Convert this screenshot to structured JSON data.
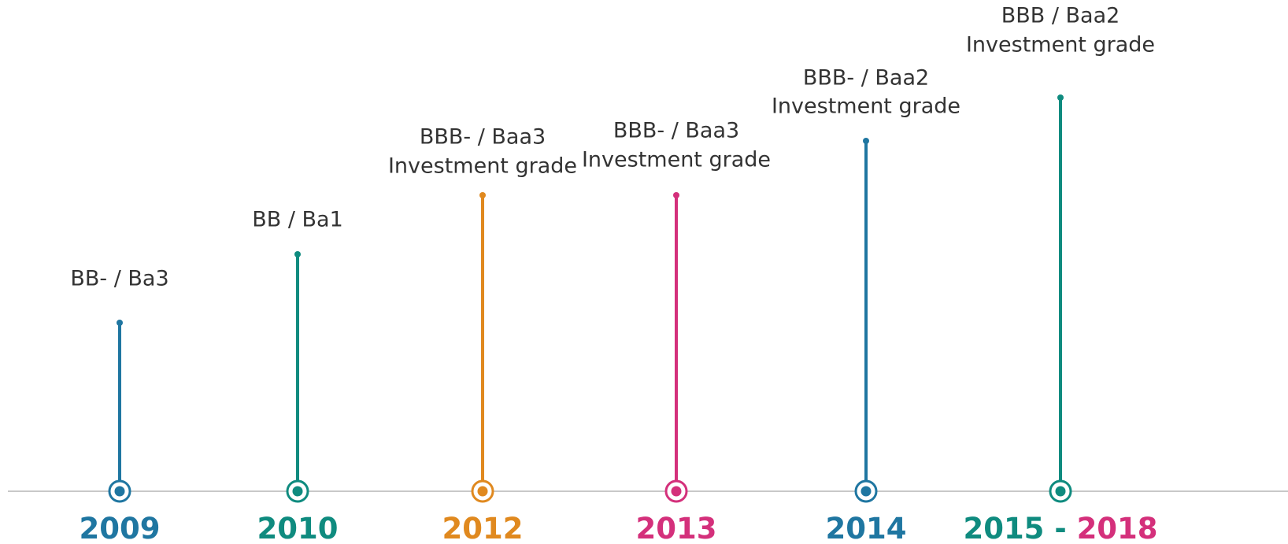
{
  "timeline": {
    "events": [
      {
        "year": "2009",
        "color": "#1f76a1",
        "rating": "BB- / Ba3"
      },
      {
        "year": "2010",
        "color": "#0f8b7f",
        "rating": "BB / Ba1"
      },
      {
        "year": "2012",
        "color": "#e0891f",
        "rating": "BBB- / Baa3",
        "note": "Investment grade"
      },
      {
        "year": "2013",
        "color": "#d4307b",
        "rating": "BBB- / Baa3",
        "note": "Investment grade"
      },
      {
        "year": "2014",
        "color": "#1f76a1",
        "rating": "BBB- / Baa2",
        "note": "Investment grade"
      },
      {
        "year": "2015 -",
        "color": "#0f8b7f",
        "year_end": "2018",
        "year_end_color": "#d4307b",
        "rating": "BBB / Baa2",
        "note": "Investment grade"
      }
    ]
  }
}
